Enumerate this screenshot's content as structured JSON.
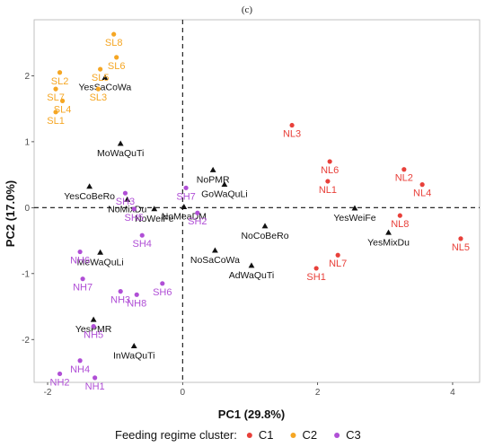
{
  "panel_label": "(c)",
  "chart_data": {
    "type": "scatter",
    "xlabel": "PC1 (29.8%)",
    "ylabel": "PC2 (17.0%)",
    "xlim": [
      -2.2,
      4.4
    ],
    "ylim": [
      -2.65,
      2.85
    ],
    "x_ticks": [
      -2,
      0,
      2,
      4
    ],
    "y_ticks": [
      -2,
      -1,
      0,
      1,
      2
    ],
    "reference_lines": {
      "x": 0,
      "y": 0,
      "style": "dashed"
    },
    "grid": false,
    "legend": {
      "title": "Feeding regime cluster:",
      "position": "bottom",
      "entries": [
        {
          "name": "C1",
          "color": "#e8403a"
        },
        {
          "name": "C2",
          "color": "#f5a623"
        },
        {
          "name": "C3",
          "color": "#b04fd6"
        }
      ]
    },
    "series": [
      {
        "name": "C1",
        "color": "#e8403a",
        "points": [
          {
            "label": "NL3",
            "x": 1.62,
            "y": 1.25
          },
          {
            "label": "NL6",
            "x": 2.18,
            "y": 0.7
          },
          {
            "label": "NL1",
            "x": 2.15,
            "y": 0.4
          },
          {
            "label": "NL2",
            "x": 3.28,
            "y": 0.58
          },
          {
            "label": "NL4",
            "x": 3.55,
            "y": 0.35
          },
          {
            "label": "NL8",
            "x": 3.22,
            "y": -0.12
          },
          {
            "label": "NL5",
            "x": 4.12,
            "y": -0.47
          },
          {
            "label": "NL7",
            "x": 2.3,
            "y": -0.72
          },
          {
            "label": "SH1",
            "x": 1.98,
            "y": -0.92
          }
        ]
      },
      {
        "name": "C2",
        "color": "#f5a623",
        "points": [
          {
            "label": "SL8",
            "x": -1.02,
            "y": 2.63
          },
          {
            "label": "SL6",
            "x": -0.98,
            "y": 2.28
          },
          {
            "label": "SL5",
            "x": -1.22,
            "y": 2.1
          },
          {
            "label": "SL2",
            "x": -1.82,
            "y": 2.05
          },
          {
            "label": "SL3",
            "x": -1.25,
            "y": 1.8
          },
          {
            "label": "SL7",
            "x": -1.88,
            "y": 1.8
          },
          {
            "label": "SL4",
            "x": -1.78,
            "y": 1.62
          },
          {
            "label": "SL1",
            "x": -1.88,
            "y": 1.45
          }
        ]
      },
      {
        "name": "C3",
        "color": "#b04fd6",
        "points": [
          {
            "label": "SH3",
            "x": -0.85,
            "y": 0.22
          },
          {
            "label": "SH7",
            "x": 0.05,
            "y": 0.3
          },
          {
            "label": "SH5",
            "x": -0.72,
            "y": -0.02
          },
          {
            "label": "SH2",
            "x": 0.22,
            "y": -0.08
          },
          {
            "label": "SH4",
            "x": -0.6,
            "y": -0.42
          },
          {
            "label": "NH6",
            "x": -1.52,
            "y": -0.67
          },
          {
            "label": "NH7",
            "x": -1.48,
            "y": -1.08
          },
          {
            "label": "NH3",
            "x": -0.92,
            "y": -1.27
          },
          {
            "label": "NH8",
            "x": -0.68,
            "y": -1.32
          },
          {
            "label": "SH6",
            "x": -0.3,
            "y": -1.15
          },
          {
            "label": "NH5",
            "x": -1.32,
            "y": -1.8
          },
          {
            "label": "NH4",
            "x": -1.52,
            "y": -2.32
          },
          {
            "label": "NH2",
            "x": -1.82,
            "y": -2.52
          },
          {
            "label": "NH1",
            "x": -1.3,
            "y": -2.58
          }
        ]
      }
    ],
    "variables": [
      {
        "label": "YesSaCoWa",
        "x": -1.15,
        "y": 1.97
      },
      {
        "label": "MoWaQuTi",
        "x": -0.92,
        "y": 0.97
      },
      {
        "label": "YesCoBeRo",
        "x": -1.38,
        "y": 0.32
      },
      {
        "label": "NoMixDu",
        "x": -0.82,
        "y": 0.12
      },
      {
        "label": "NoWeiFe",
        "x": -0.42,
        "y": -0.02
      },
      {
        "label": "NoMeaDM",
        "x": 0.02,
        "y": 0.01
      },
      {
        "label": "NoPMR",
        "x": 0.45,
        "y": 0.57
      },
      {
        "label": "GoWaQuLi",
        "x": 0.62,
        "y": 0.35
      },
      {
        "label": "NoCoBeRo",
        "x": 1.22,
        "y": -0.28
      },
      {
        "label": "YesWeiFe",
        "x": 2.55,
        "y": -0.01
      },
      {
        "label": "YesMixDu",
        "x": 3.05,
        "y": -0.38
      },
      {
        "label": "MeWaQuLi",
        "x": -1.22,
        "y": -0.68
      },
      {
        "label": "NoSaCoWa",
        "x": 0.48,
        "y": -0.65
      },
      {
        "label": "AdWaQuTi",
        "x": 1.02,
        "y": -0.88
      },
      {
        "label": "YesPMR",
        "x": -1.32,
        "y": -1.7
      },
      {
        "label": "InWaQuTi",
        "x": -0.72,
        "y": -2.1
      }
    ]
  }
}
